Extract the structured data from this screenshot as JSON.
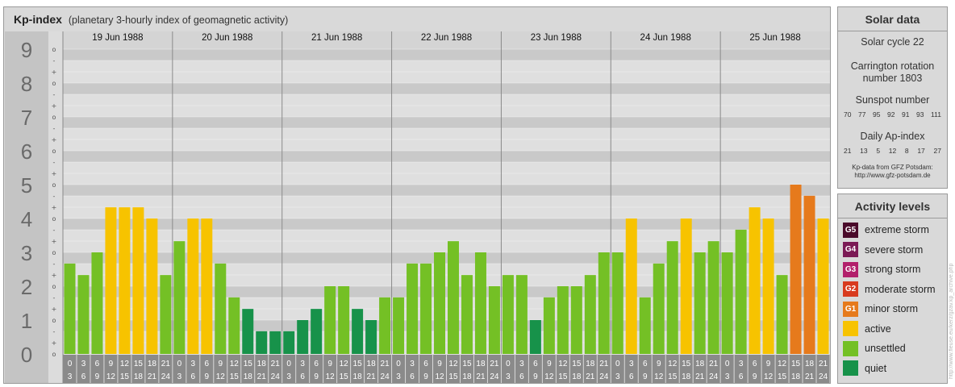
{
  "header": {
    "title": "Kp-index",
    "subtitle": "(planetary 3-hourly index of geomagnetic activity)"
  },
  "solar": {
    "title": "Solar data",
    "cycle": "Solar cycle 22",
    "carrington": "Carrington rotation number 1803",
    "sunspot_label": "Sunspot number",
    "sunspot_values": [
      "70",
      "77",
      "95",
      "92",
      "91",
      "93",
      "111"
    ],
    "ap_label": "Daily Ap-index",
    "ap_values": [
      "21",
      "13",
      "5",
      "12",
      "8",
      "17",
      "27"
    ],
    "source_line1": "Kp-data from GFZ Potsdam:",
    "source_line2": "http://www.gfz-potsdam.de"
  },
  "legend": {
    "title": "Activity levels",
    "items": [
      {
        "code": "G5",
        "label": "extreme storm",
        "color": "#4a0a2a"
      },
      {
        "code": "G4",
        "label": "severe storm",
        "color": "#7b1a55"
      },
      {
        "code": "G3",
        "label": "strong storm",
        "color": "#b21f6b"
      },
      {
        "code": "G2",
        "label": "moderate storm",
        "color": "#d83a1e"
      },
      {
        "code": "G1",
        "label": "minor storm",
        "color": "#e67a1c"
      },
      {
        "code": "",
        "label": "active",
        "color": "#f7c300"
      },
      {
        "code": "",
        "label": "unsettled",
        "color": "#74c025"
      },
      {
        "code": "",
        "label": "quiet",
        "color": "#17924a"
      }
    ]
  },
  "watermark": "http://www.fleuse.eu/kerz/gzav.kp_archive.php",
  "chart_data": {
    "type": "bar",
    "title": "Kp-index",
    "ylim": [
      0,
      9
    ],
    "yticks": [
      "0",
      "1",
      "2",
      "3",
      "4",
      "5",
      "6",
      "7",
      "8",
      "9"
    ],
    "days": [
      "19 Jun 1988",
      "20 Jun 1988",
      "21 Jun 1988",
      "22 Jun 1988",
      "23 Jun 1988",
      "24 Jun 1988",
      "25 Jun 1988"
    ],
    "hour_start": [
      "0",
      "3",
      "6",
      "9",
      "12",
      "15",
      "18",
      "21"
    ],
    "hour_end": [
      "3",
      "6",
      "9",
      "12",
      "15",
      "18",
      "21",
      "24"
    ],
    "values": [
      2.67,
      2.33,
      3.0,
      4.33,
      4.33,
      4.33,
      4.0,
      2.33,
      3.33,
      4.0,
      4.0,
      2.67,
      1.67,
      1.33,
      0.67,
      0.67,
      0.67,
      1.0,
      1.33,
      2.0,
      2.0,
      1.33,
      1.0,
      1.67,
      1.67,
      2.67,
      2.67,
      3.0,
      3.33,
      2.33,
      3.0,
      2.0,
      2.33,
      2.33,
      1.0,
      1.67,
      2.0,
      2.0,
      2.33,
      3.0,
      3.0,
      4.0,
      1.67,
      2.67,
      3.33,
      4.0,
      3.0,
      3.33,
      3.0,
      3.67,
      4.33,
      4.0,
      2.33,
      5.0,
      4.67,
      4.0
    ],
    "level_colors": {
      "quiet": "#17924a",
      "unsettled": "#74c025",
      "active": "#f7c300",
      "minor_storm": "#e67a1c",
      "moderate_storm": "#d83a1e"
    }
  }
}
